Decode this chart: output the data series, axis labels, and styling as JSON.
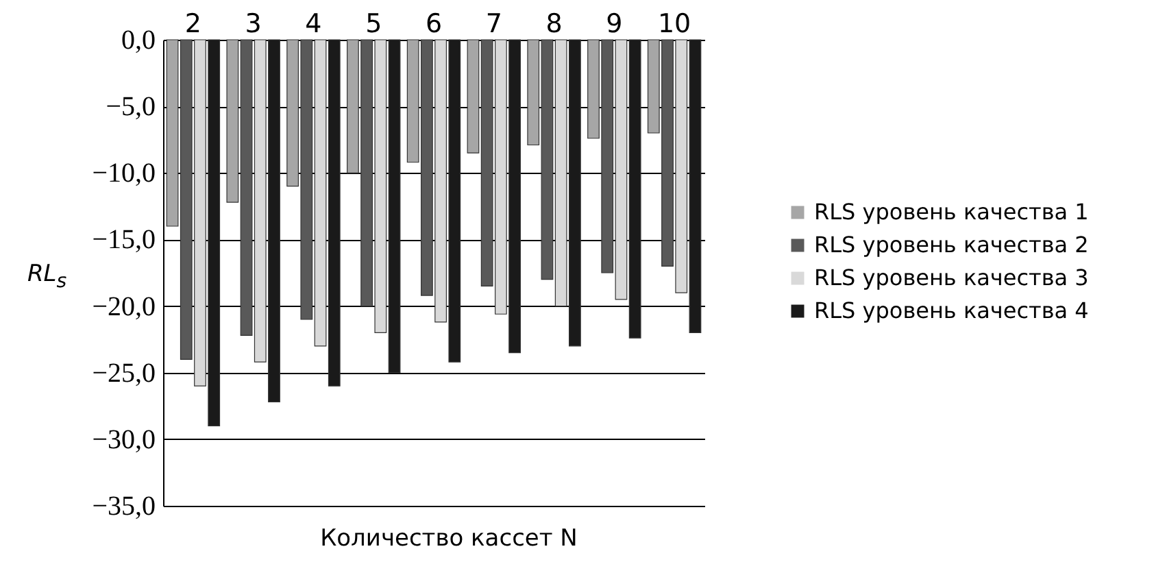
{
  "chart_data": {
    "type": "bar",
    "xlabel": "Количество кассет N",
    "ylabel": "RL$_{s}$",
    "categories": [
      "2",
      "3",
      "4",
      "5",
      "6",
      "7",
      "8",
      "9",
      "10"
    ],
    "series": [
      {
        "name": "RLS уровень качества 1",
        "color": "#a6a6a6",
        "values": [
          -14.0,
          -12.2,
          -11.0,
          -10.0,
          -9.2,
          -8.5,
          -7.9,
          -7.4,
          -7.0
        ]
      },
      {
        "name": "RLS уровень качества 2",
        "color": "#595959",
        "values": [
          -24.0,
          -22.2,
          -21.0,
          -20.0,
          -19.2,
          -18.5,
          -18.0,
          -17.5,
          -17.0
        ]
      },
      {
        "name": "RLS уровень качества 3",
        "color": "#d9d9d9",
        "values": [
          -26.0,
          -24.2,
          -23.0,
          -22.0,
          -21.2,
          -20.6,
          -20.0,
          -19.5,
          -19.0
        ]
      },
      {
        "name": "RLS уровень качества 4",
        "color": "#1a1a1a",
        "values": [
          -29.0,
          -27.2,
          -26.0,
          -25.0,
          -24.2,
          -23.5,
          -23.0,
          -22.4,
          -22.0
        ]
      }
    ],
    "ylim": [
      -35,
      0
    ],
    "yticks": [
      {
        "value": 0,
        "label": "0,0"
      },
      {
        "value": -5,
        "label": "−5,0"
      },
      {
        "value": -10,
        "label": "−10,0"
      },
      {
        "value": -15,
        "label": "−15,0"
      },
      {
        "value": -20,
        "label": "−20,0"
      },
      {
        "value": -25,
        "label": "−25,0"
      },
      {
        "value": -30,
        "label": "−30,0"
      },
      {
        "value": -35,
        "label": "−35,0"
      }
    ],
    "grid": "y",
    "legend": "right"
  }
}
